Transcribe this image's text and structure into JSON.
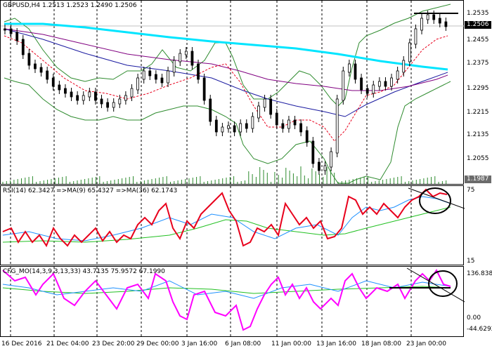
{
  "main": {
    "title": "GBPUSD,H4  1.2513 1.2523 1.2490 1.2506",
    "price_labels": [
      "1.2535",
      "1.2455",
      "1.2375",
      "1.2295",
      "1.2215",
      "1.2135",
      "1.2055"
    ],
    "current_price": "1.2506",
    "low_price": "1.1987"
  },
  "rsi": {
    "title": "RSI(14) 62.3427  =>MA(9) 65.4327  =>MA(36) 62.1743",
    "levels": [
      "75",
      "15"
    ],
    "colors": {
      "rsi": "#e8001c",
      "ma9": "#1e90ff",
      "ma36": "#22c022"
    }
  },
  "cfg": {
    "title": "CFG_MO(14,3,9,3,13,33) 43.7135 75.9572 67.1990",
    "levels": [
      "136.8382",
      "0.00",
      "-44.6292"
    ],
    "colors": {
      "line": "#ff00ff",
      "signal": "#1e90ff",
      "slow": "#22c022"
    }
  },
  "time_labels": [
    "16 Dec 2016",
    "21 Dec 04:00",
    "23 Dec 20:00",
    "29 Dec 00:00",
    "3 Jan 16:00",
    "6 Jan 08:00",
    "11 Jan 00:00",
    "13 Jan 16:00",
    "18 Jan 08:00",
    "23 Jan 00:00"
  ],
  "colors": {
    "ma_cyan": "#00e5ff",
    "ma_navy": "#1a1aa0",
    "ma_purple": "#800080",
    "bollinger": "#2e8b2e",
    "ma_fast": "#e8001c"
  }
}
